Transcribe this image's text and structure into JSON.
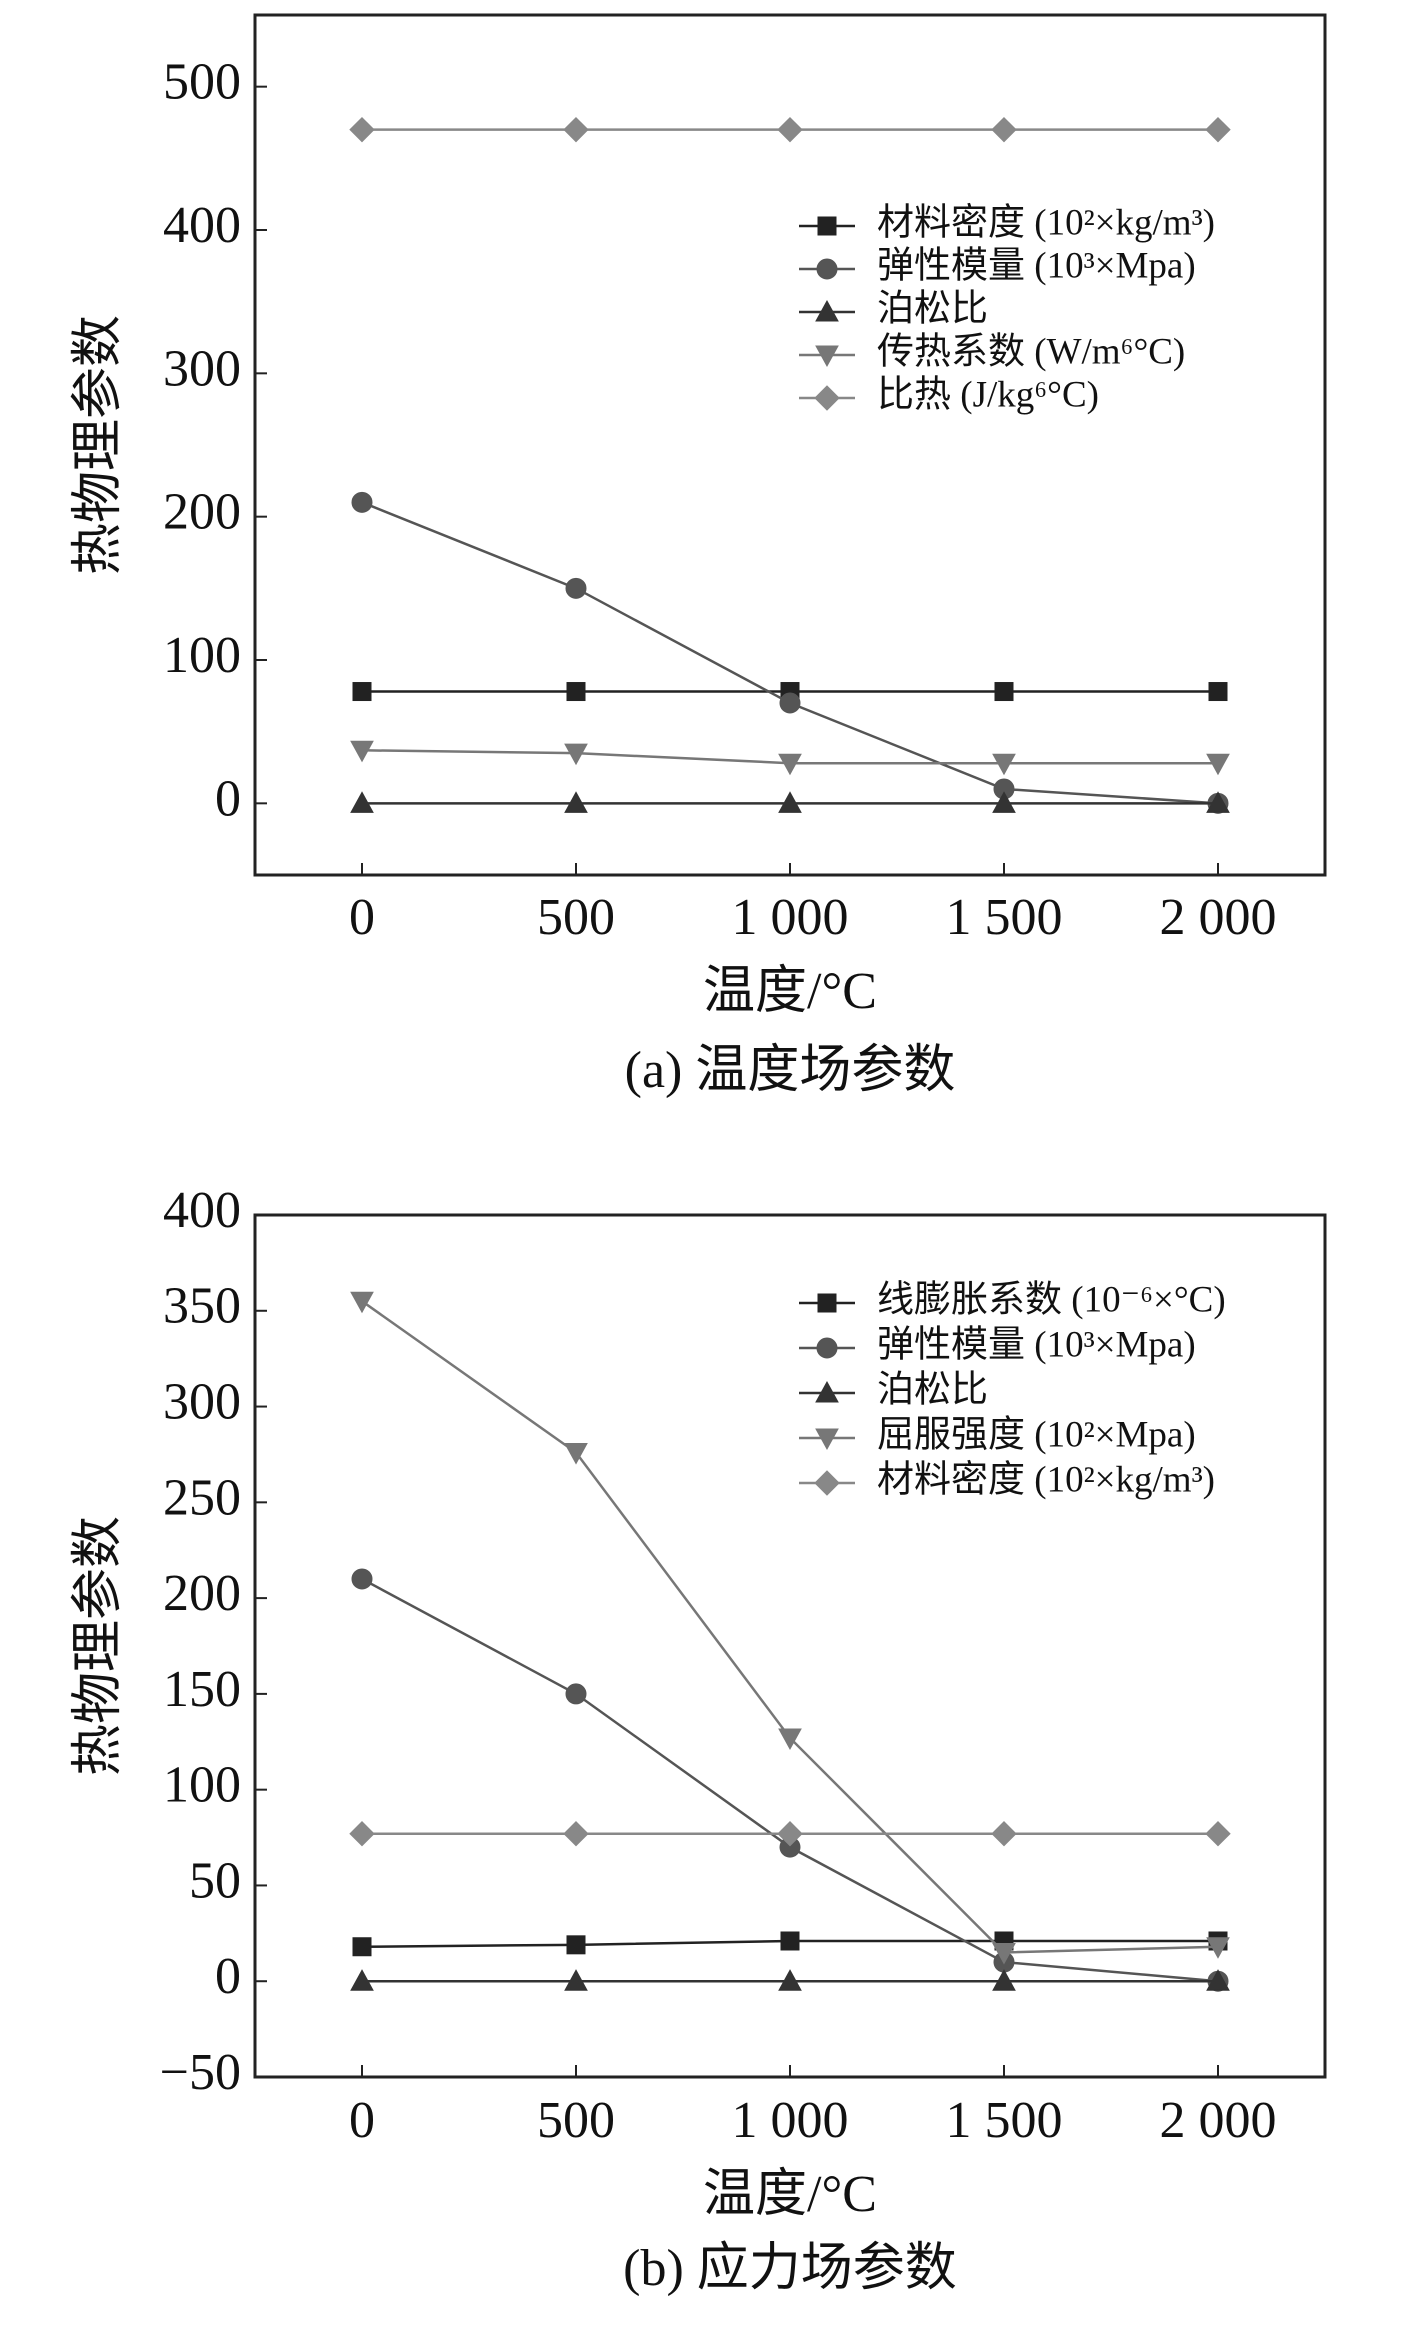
{
  "chart_data": [
    {
      "type": "line",
      "x": [
        0,
        500,
        1000,
        1500,
        2000
      ],
      "xlim": [
        -250,
        2250
      ],
      "xticks": [
        0,
        500,
        {
          "value": 1000,
          "label": "1 000"
        },
        {
          "value": 1500,
          "label": "1 500"
        },
        {
          "value": 2000,
          "label": "2 000"
        }
      ],
      "ylim": [
        -50,
        550
      ],
      "yticks": [
        0,
        100,
        200,
        300,
        400,
        500
      ],
      "xlabel": "温度/°C",
      "ylabel": "热物理参数",
      "caption": "(a) 温度场参数",
      "series": [
        {
          "name": "材料密度 (10²×kg/m³)",
          "color": "#222222",
          "marker": "square",
          "values": [
            78,
            78,
            78,
            78,
            78
          ]
        },
        {
          "name": "弹性模量 (10³×Mpa)",
          "color": "#555555",
          "marker": "circle",
          "values": [
            210,
            150,
            70,
            10,
            0
          ]
        },
        {
          "name": "泊松比",
          "color": "#333333",
          "marker": "triangle-up",
          "values": [
            0,
            0,
            0,
            0,
            0
          ]
        },
        {
          "name": "传热系数 (W/m⁶°C)",
          "color": "#777777",
          "marker": "triangle-down",
          "values": [
            37,
            35,
            28,
            28,
            28
          ]
        },
        {
          "name": "比热 (J/kg⁶°C)",
          "color": "#888888",
          "marker": "diamond",
          "values": [
            470,
            470,
            470,
            470,
            470
          ]
        }
      ]
    },
    {
      "type": "line",
      "x": [
        0,
        500,
        1000,
        1500,
        2000
      ],
      "xlim": [
        -250,
        2250
      ],
      "xticks": [
        0,
        500,
        {
          "value": 1000,
          "label": "1 000"
        },
        {
          "value": 1500,
          "label": "1 500"
        },
        {
          "value": 2000,
          "label": "2 000"
        }
      ],
      "ylim": [
        -50,
        400
      ],
      "yticks": [
        {
          "value": -50,
          "label": "−50"
        },
        0,
        50,
        100,
        150,
        200,
        250,
        300,
        350,
        400
      ],
      "xlabel": "温度/°C",
      "ylabel": "热物理参数",
      "caption": "(b) 应力场参数",
      "series": [
        {
          "name": "线膨胀系数 (10⁻⁶×°C)",
          "color": "#222222",
          "marker": "square",
          "values": [
            18,
            19,
            21,
            21,
            21
          ]
        },
        {
          "name": "弹性模量 (10³×Mpa)",
          "color": "#555555",
          "marker": "circle",
          "values": [
            210,
            150,
            70,
            10,
            0
          ]
        },
        {
          "name": "泊松比",
          "color": "#333333",
          "marker": "triangle-up",
          "values": [
            0,
            0,
            0,
            0,
            0
          ]
        },
        {
          "name": "屈服强度 (10²×Mpa)",
          "color": "#777777",
          "marker": "triangle-down",
          "values": [
            355,
            276,
            127,
            15,
            18
          ]
        },
        {
          "name": "材料密度 (10²×kg/m³)",
          "color": "#888888",
          "marker": "diamond",
          "values": [
            77,
            77,
            77,
            77,
            77
          ]
        }
      ]
    }
  ]
}
